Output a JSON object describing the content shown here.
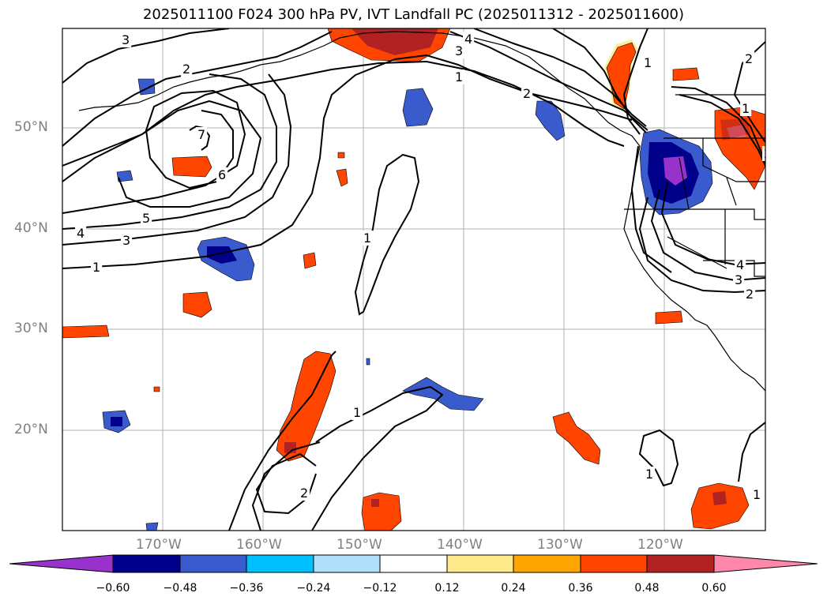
{
  "title": "2025011100 F024 300 hPa PV, IVT Landfall PC (2025011312 - 2025011600)",
  "lat_labels": [
    "50°N",
    "40°N",
    "30°N",
    "20°N"
  ],
  "lon_labels": [
    "170°W",
    "160°W",
    "150°W",
    "140°W",
    "130°W",
    "120°W"
  ],
  "colorbar": {
    "ticks": [
      "−0.60",
      "−0.48",
      "−0.36",
      "−0.24",
      "−0.12",
      "0.12",
      "0.24",
      "0.36",
      "0.48",
      "0.60"
    ],
    "colors": [
      "#9932CC",
      "#00008B",
      "#3A5BCD",
      "#00BFFF",
      "#B0E0FA",
      "#FFFFFF",
      "#FFEB8C",
      "#FFA500",
      "#FF4500",
      "#B22222",
      "#FF88AA"
    ],
    "extend": "both"
  },
  "contour_labels": [
    "3",
    "2",
    "1",
    "7",
    "6",
    "5",
    "4",
    "3",
    "1",
    "4",
    "3",
    "1",
    "2",
    "1",
    "2",
    "1",
    "4",
    "3",
    "2",
    "1",
    "2",
    "1",
    "1",
    "2"
  ],
  "colors": {
    "gridline": "#b0b0b0",
    "coastline": "#000000",
    "contour": "#000000"
  }
}
